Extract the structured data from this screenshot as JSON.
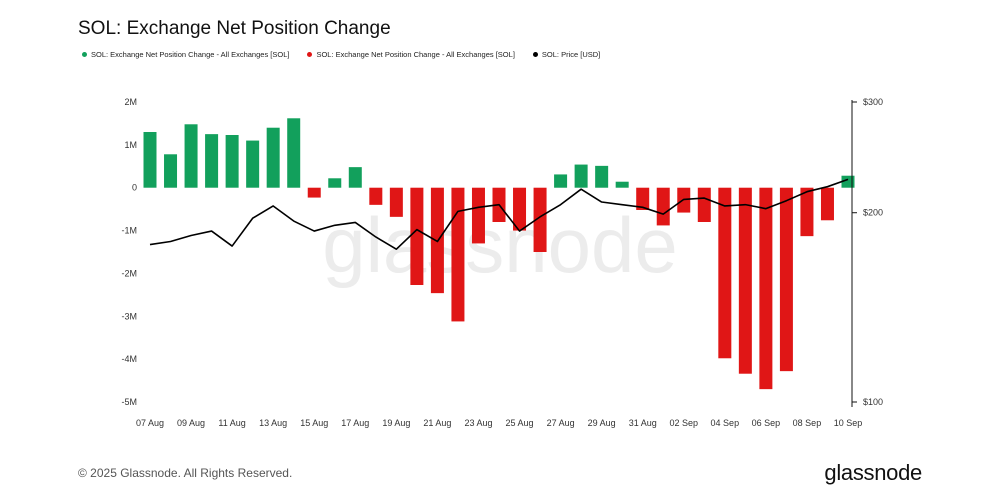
{
  "title": "SOL: Exchange Net Position Change",
  "legend": [
    {
      "label": "SOL: Exchange Net Position Change - All Exchanges [SOL]",
      "color": "#12a05c"
    },
    {
      "label": "SOL: Exchange Net Position Change - All Exchanges [SOL]",
      "color": "#e01616"
    },
    {
      "label": "SOL: Price [USD]",
      "color": "#000000"
    }
  ],
  "footer": "© 2025 Glassnode. All Rights Reserved.",
  "brand": "glassnode",
  "watermark": "glassnode",
  "chart_data": {
    "type": "bar",
    "title": "SOL: Exchange Net Position Change",
    "colors": {
      "positive": "#12a05c",
      "negative": "#e01616",
      "price": "#000000"
    },
    "x": [
      "07 Aug",
      "08 Aug",
      "09 Aug",
      "10 Aug",
      "11 Aug",
      "12 Aug",
      "13 Aug",
      "14 Aug",
      "15 Aug",
      "16 Aug",
      "17 Aug",
      "18 Aug",
      "19 Aug",
      "20 Aug",
      "21 Aug",
      "22 Aug",
      "23 Aug",
      "24 Aug",
      "25 Aug",
      "26 Aug",
      "27 Aug",
      "28 Aug",
      "29 Aug",
      "30 Aug",
      "31 Aug",
      "01 Sep",
      "02 Sep",
      "03 Sep",
      "04 Sep",
      "05 Sep",
      "06 Sep",
      "07 Sep",
      "08 Sep",
      "09 Sep",
      "10 Sep"
    ],
    "x_tick_labels": [
      "07 Aug",
      "09 Aug",
      "11 Aug",
      "13 Aug",
      "15 Aug",
      "17 Aug",
      "19 Aug",
      "21 Aug",
      "23 Aug",
      "25 Aug",
      "27 Aug",
      "29 Aug",
      "31 Aug",
      "02 Sep",
      "04 Sep",
      "06 Sep",
      "08 Sep",
      "10 Sep"
    ],
    "series": [
      {
        "name": "SOL: Exchange Net Position Change - All Exchanges [SOL]",
        "axis": "left",
        "values": [
          1300000,
          780000,
          1480000,
          1250000,
          1230000,
          1100000,
          1400000,
          1620000,
          -230000,
          220000,
          480000,
          -400000,
          -680000,
          -2270000,
          -2460000,
          -3120000,
          -1300000,
          -800000,
          -1000000,
          -1500000,
          310000,
          540000,
          510000,
          140000,
          -520000,
          -880000,
          -580000,
          -800000,
          -3980000,
          -4340000,
          -4700000,
          -4280000,
          -1130000,
          -760000,
          280000
        ]
      },
      {
        "name": "SOL: Price [USD]",
        "axis": "right",
        "values": [
          178,
          180,
          184,
          187,
          177,
          196,
          205,
          194,
          187,
          191,
          193,
          183,
          175,
          188,
          180,
          201,
          204,
          206,
          187,
          197,
          206,
          218,
          208,
          206,
          204,
          199,
          210,
          211,
          205,
          206,
          203,
          209,
          216,
          220,
          226
        ]
      }
    ],
    "y_left": {
      "ticks": [
        2000000,
        1000000,
        0,
        -1000000,
        -2000000,
        -3000000,
        -4000000,
        -5000000
      ],
      "labels": [
        "2M",
        "1M",
        "0",
        "-1M",
        "-2M",
        "-3M",
        "-4M",
        "-5M"
      ],
      "range": [
        -5000000,
        2000000
      ]
    },
    "y_right": {
      "scale": "log",
      "ticks": [
        300,
        200,
        100
      ],
      "labels": [
        "$300",
        "$200",
        "$100"
      ],
      "range": [
        100,
        300
      ]
    },
    "grid": false,
    "legend_position": "top-left"
  }
}
